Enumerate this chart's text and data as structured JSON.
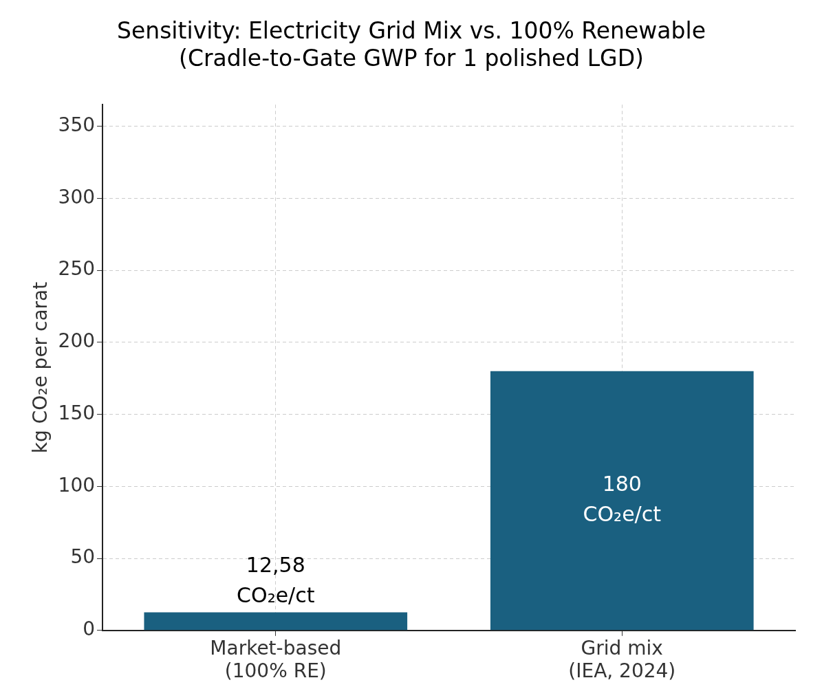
{
  "chart_data": {
    "type": "bar",
    "title": "Sensitivity: Electricity Grid Mix vs. 100% Renewable\n(Cradle-to-Gate GWP for 1 polished LGD)",
    "ylabel": "kg CO₂e per carat",
    "categories": [
      "Market-based\n(100% RE)",
      "Grid mix\n(IEA, 2024)"
    ],
    "values": [
      12.58,
      180
    ],
    "color": "#1a6080",
    "value_labels": [
      "12,58\nCO₂e/ct",
      "180\nCO₂e/ct"
    ],
    "ylim": [
      0,
      365
    ],
    "yticks": [
      0,
      50,
      100,
      150,
      200,
      250,
      300,
      350
    ],
    "grid": true,
    "legend": false
  }
}
